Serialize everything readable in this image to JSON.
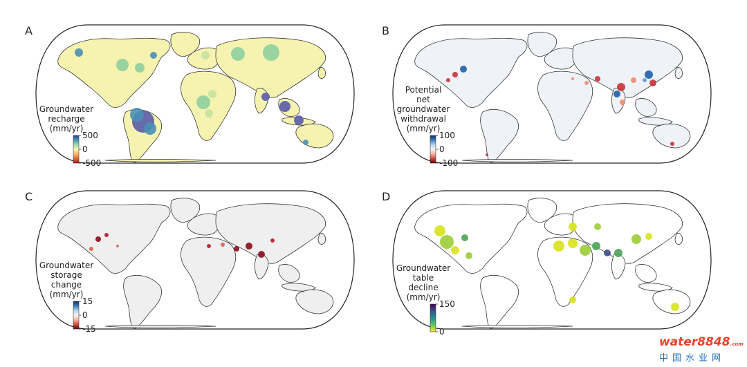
{
  "panels": [
    {
      "letter": "A",
      "legend_lines": [
        "Groundwater",
        "recharge",
        "(mm/yr)"
      ],
      "ticks": [
        "500",
        "0",
        "-500"
      ],
      "colorbar": [
        "#2b3d8f",
        "#4a98b8",
        "#9fd7a2",
        "#f7f7c4",
        "#fdb863",
        "#e0683c",
        "#a80f25"
      ],
      "land_color": "#f6f3b0",
      "ocean_color": "#ffffff",
      "hotspot_colors": [
        "#5a5ba9",
        "#4a8fb5",
        "#8fcf9e",
        "#c7e39e"
      ]
    },
    {
      "letter": "B",
      "legend_lines": [
        "Potential",
        "net",
        "groundwater",
        "withdrawal",
        "(mm/yr)"
      ],
      "ticks": [
        "100",
        "0",
        "-100"
      ],
      "colorbar": [
        "#0b2f6b",
        "#3d7bb8",
        "#b5d3e8",
        "#f4f4f4",
        "#f3b7a3",
        "#cf4a3a",
        "#67000d"
      ],
      "land_color": "#eff2f6",
      "ocean_color": "#ffffff",
      "hotspot_colors": [
        "#1c5fa8",
        "#c8323a",
        "#f08a6f",
        "#5b9bd1"
      ]
    },
    {
      "letter": "C",
      "legend_lines": [
        "Groundwater",
        "storage",
        "change",
        "(mm/yr)"
      ],
      "ticks": [
        "15",
        "0",
        "-15"
      ],
      "colorbar": [
        "#0b2f6b",
        "#3d7bb8",
        "#b5d3e8",
        "#f4f4f4",
        "#f3b7a3",
        "#cf4a3a",
        "#67000d"
      ],
      "land_color": "#efefef",
      "ocean_color": "#ffffff",
      "hotspot_colors": [
        "#8b0b1a",
        "#b2182b",
        "#d6604d"
      ]
    },
    {
      "letter": "D",
      "legend_lines": [
        "Groundwater",
        "table",
        "decline",
        "(mm/yr)"
      ],
      "ticks": [
        "150",
        "0"
      ],
      "colorbar": [
        "#440154",
        "#3b528b",
        "#21908d",
        "#5dc863",
        "#fde725"
      ],
      "land_color": "#ffffff",
      "ocean_color": "#ffffff",
      "hotspot_colors": [
        "#d8e21a",
        "#9ccd35",
        "#4aa35a",
        "#3d4e8a"
      ]
    }
  ],
  "watermark": {
    "brand": "water8848",
    "domain": ".com",
    "chinese": "中国水业网"
  }
}
